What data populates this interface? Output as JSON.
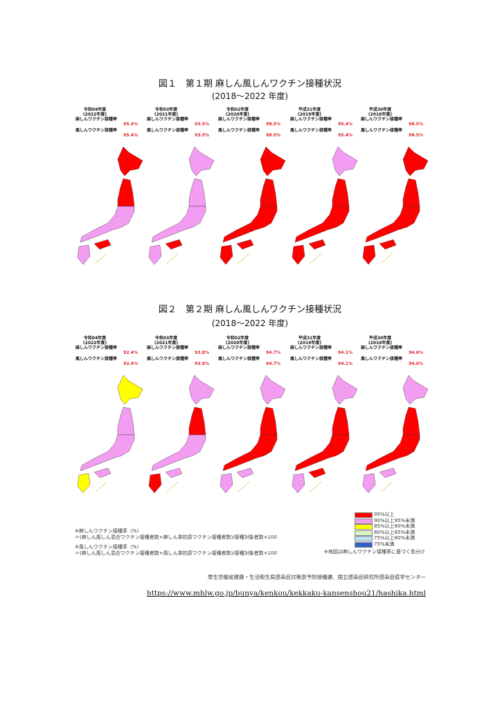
{
  "figures": [
    {
      "title": "図１　第１期 麻しん風しんワクチン接種状況",
      "subtitle": "(2018〜2022 年度)",
      "panels": [
        {
          "era": "令和04年度",
          "year": "(2022年度)",
          "measles_label": "麻しんワクチン接種率",
          "measles": "95.4%",
          "rubella_label": "風しんワクチン接種率",
          "rubella": "95.4%"
        },
        {
          "era": "令和03年度",
          "year": "(2021年度)",
          "measles_label": "麻しんワクチン接種率",
          "measles": "93.5%",
          "rubella_label": "風しんワクチン接種率",
          "rubella": "93.5%"
        },
        {
          "era": "令和02年度",
          "year": "(2020年度)",
          "measles_label": "麻しんワクチン接種率",
          "measles": "98.5%",
          "rubella_label": "風しんワクチン接種率",
          "rubella": "98.5%"
        },
        {
          "era": "平成31年度",
          "year": "(2019年度)",
          "measles_label": "麻しんワクチン接種率",
          "measles": "95.4%",
          "rubella_label": "風しんワクチン接種率",
          "rubella": "95.4%"
        },
        {
          "era": "平成30年度",
          "year": "(2018年度)",
          "measles_label": "麻しんワクチン接種率",
          "measles": "98.5%",
          "rubella_label": "風しんワクチン接種率",
          "rubella": "98.5%"
        }
      ]
    },
    {
      "title": "図２　第２期 麻しん風しんワクチン接種状況",
      "subtitle": "(2018〜2022 年度)",
      "panels": [
        {
          "era": "令和04年度",
          "year": "(2022年度)",
          "measles_label": "麻しんワクチン接種率",
          "measles": "92.4%",
          "rubella_label": "風しんワクチン接種率",
          "rubella": "92.4%"
        },
        {
          "era": "令和03年度",
          "year": "(2021年度)",
          "measles_label": "麻しんワクチン接種率",
          "measles": "93.8%",
          "rubella_label": "風しんワクチン接種率",
          "rubella": "93.8%"
        },
        {
          "era": "令和02年度",
          "year": "(2020年度)",
          "measles_label": "麻しんワクチン接種率",
          "measles": "94.7%",
          "rubella_label": "風しんワクチン接種率",
          "rubella": "94.7%"
        },
        {
          "era": "平成31年度",
          "year": "(2019年度)",
          "measles_label": "麻しんワクチン接種率",
          "measles": "94.1%",
          "rubella_label": "風しんワクチン接種率",
          "rubella": "94.1%"
        },
        {
          "era": "平成30年度",
          "year": "(2018年度)",
          "measles_label": "麻しんワクチン接種率",
          "measles": "94.6%",
          "rubella_label": "風しんワクチン接種率",
          "rubella": "94.6%"
        }
      ]
    }
  ],
  "legend": [
    {
      "label": "95%以上",
      "color": "#ff0000"
    },
    {
      "label": "90%以上95%未満",
      "color": "#f29cf2"
    },
    {
      "label": "85%以上90%未満",
      "color": "#ffff00"
    },
    {
      "label": "80%以上85%未満",
      "color": "#d9f2c4"
    },
    {
      "label": "75%以上80%未満",
      "color": "#bfe0f2"
    },
    {
      "label": "75%未満",
      "color": "#2f62c8"
    }
  ],
  "legend_note": "※地図は麻しんワクチン接種率に基づく色分け",
  "notes": [
    "※麻しんワクチン接種率（%）",
    "＝(麻しん風しん混合ワクチン接種者数+麻しん単抗原ワクチン接種者数)/接種対象者数×100",
    "※風しんワクチン接種率（%）",
    "＝(麻しん風しん混合ワクチン接種者数+風しん単抗原ワクチン接種者数)/接種対象者数×100"
  ],
  "source": "厚生労働省健康・生活衛生局感染症対策部予防接種課、国立感染症研究所感染症疫学センター",
  "url": "https://www.mhlw.go.jp/bunya/kenkou/kekkaku-kansenshou21/hashika.html"
}
